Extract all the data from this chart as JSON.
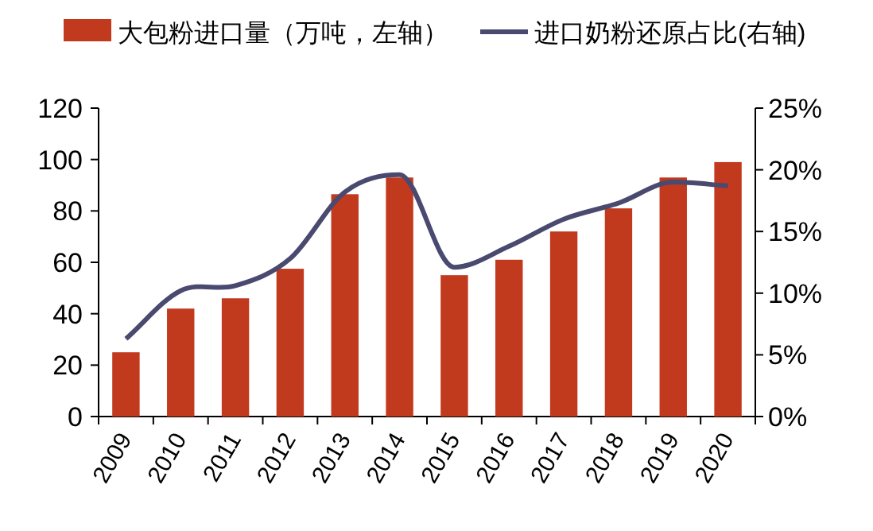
{
  "chart_data": {
    "type": "bar",
    "categories": [
      "2009",
      "2010",
      "2011",
      "2012",
      "2013",
      "2014",
      "2015",
      "2016",
      "2017",
      "2018",
      "2019",
      "2020"
    ],
    "series": [
      {
        "name": "大包粉进口量（万吨，左轴）",
        "color": "#c23a1e",
        "values": [
          25,
          42,
          46,
          57.5,
          86.5,
          93,
          55,
          61,
          72,
          81,
          93,
          99
        ]
      },
      {
        "name": "进口奶粉还原占比(右轴)",
        "type": "line",
        "axis": "y2",
        "color": "#4a4970",
        "values": [
          6.3,
          10.2,
          10.6,
          12.8,
          18.2,
          19.6,
          12.1,
          13.8,
          16,
          17.3,
          19,
          18.7
        ]
      }
    ],
    "ylim": [
      0,
      120
    ],
    "yticks": [
      0,
      20,
      40,
      60,
      80,
      100,
      120
    ],
    "y2lim": [
      0,
      25
    ],
    "y2ticks": [
      {
        "value": 0,
        "label": "0%"
      },
      {
        "value": 5,
        "label": "5%"
      },
      {
        "value": 10,
        "label": "10%"
      },
      {
        "value": 15,
        "label": "15%"
      },
      {
        "value": 20,
        "label": "20%"
      },
      {
        "value": 25,
        "label": "25%"
      }
    ],
    "legend": "top",
    "grid": false
  }
}
